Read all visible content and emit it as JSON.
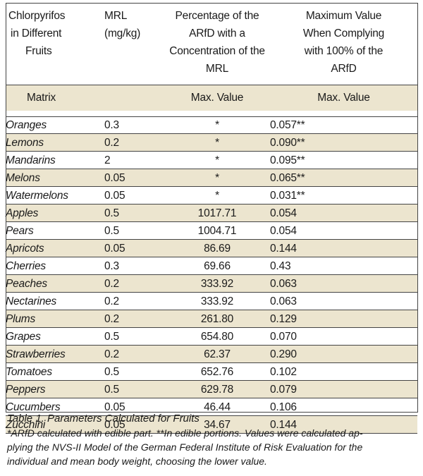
{
  "header": {
    "col1": [
      "Chlorpyrifos",
      "in Different",
      "Fruits"
    ],
    "col2": [
      "MRL (mg/kg)"
    ],
    "col3": [
      "Percentage of the",
      "ARfD with a",
      "Concentration of the",
      "MRL"
    ],
    "col4": [
      "Maximum Value",
      "When Complying",
      "with 100% of the",
      "ARfD"
    ]
  },
  "subheader": {
    "col1": "Matrix",
    "col3": "Max. Value",
    "col4": "Max. Value"
  },
  "rows": [
    {
      "fruit": "Oranges",
      "mrl": "0.3",
      "pct": "*",
      "max": "0.057**"
    },
    {
      "fruit": "Lemons",
      "mrl": "0.2",
      "pct": "*",
      "max": "0.090**"
    },
    {
      "fruit": "Mandarins",
      "mrl": "2",
      "pct": "*",
      "max": "0.095**"
    },
    {
      "fruit": "Melons",
      "mrl": "0.05",
      "pct": "*",
      "max": "0.065**"
    },
    {
      "fruit": "Watermelons",
      "mrl": "0.05",
      "pct": "*",
      "max": "0.031**"
    },
    {
      "fruit": "Apples",
      "mrl": "0.5",
      "pct": "1017.71",
      "max": "0.054"
    },
    {
      "fruit": "Pears",
      "mrl": "0.5",
      "pct": "1004.71",
      "max": "0.054"
    },
    {
      "fruit": "Apricots",
      "mrl": "0.05",
      "pct": "86.69",
      "max": "0.144"
    },
    {
      "fruit": "Cherries",
      "mrl": "0.3",
      "pct": "69.66",
      "max": "0.43"
    },
    {
      "fruit": "Peaches",
      "mrl": "0.2",
      "pct": "333.92",
      "max": "0.063"
    },
    {
      "fruit": "Nectarines",
      "mrl": "0.2",
      "pct": "333.92",
      "max": "0.063"
    },
    {
      "fruit": "Plums",
      "mrl": "0.2",
      "pct": "261.80",
      "max": "0.129"
    },
    {
      "fruit": "Grapes",
      "mrl": "0.5",
      "pct": "654.80",
      "max": "0.070"
    },
    {
      "fruit": "Strawberries",
      "mrl": "0.2",
      "pct": "62.37",
      "max": "0.290"
    },
    {
      "fruit": "Tomatoes",
      "mrl": "0.5",
      "pct": "652.76",
      "max": "0.102"
    },
    {
      "fruit": "Peppers",
      "mrl": "0.5",
      "pct": "629.78",
      "max": "0.079"
    },
    {
      "fruit": "Cucumbers",
      "mrl": "0.05",
      "pct": "46.44",
      "max": "0.106"
    },
    {
      "fruit": "Zucchini",
      "mrl": "0.05",
      "pct": "34.67",
      "max": "0.144"
    }
  ],
  "caption": {
    "title": "Table 1. Parameters Calculated for Fruits",
    "lines": [
      "*ARfD calculated with edible part. **In edible portions. Values were calculated ap-",
      "plying the NVS-II Model of the German Federal Institute of Risk Evaluation for the",
      "individual and mean body weight, choosing the lower value."
    ]
  },
  "colors": {
    "shade": "#ece5cf",
    "rule": "#444444"
  }
}
